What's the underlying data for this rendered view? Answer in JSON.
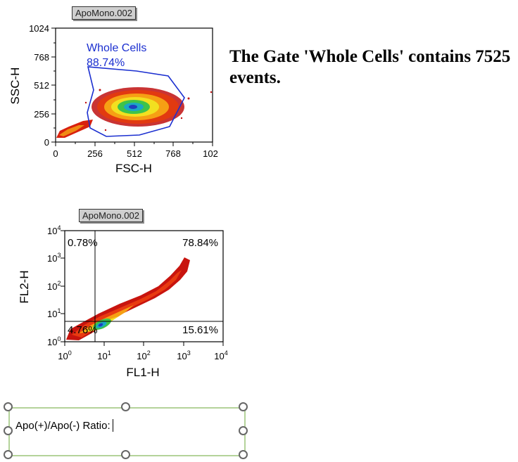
{
  "plots": [
    {
      "title": "ApoMono.002",
      "x_axis": {
        "label": "FSC-H",
        "ticks": [
          "0",
          "256",
          "512",
          "768",
          "102"
        ]
      },
      "y_axis": {
        "label": "SSC-H",
        "ticks": [
          "0",
          "256",
          "512",
          "768",
          "1024"
        ]
      },
      "gate": {
        "name": "Whole Cells",
        "percent": "88.74%"
      }
    },
    {
      "title": "ApoMono.002",
      "x_axis": {
        "label": "FL1-H",
        "ticks": [
          "10^0",
          "10^1",
          "10^2",
          "10^3",
          "10^4"
        ]
      },
      "y_axis": {
        "label": "FL2-H",
        "ticks": [
          "10^0",
          "10^1",
          "10^2",
          "10^3",
          "10^4"
        ]
      },
      "quadrants": {
        "upper_left": "0.78%",
        "upper_right": "78.84%",
        "lower_left": "4.76%",
        "lower_right": "15.61%"
      }
    }
  ],
  "statement": {
    "text": "The Gate 'Whole Cells' contains 7525 events."
  },
  "ratio_box": {
    "label": "Apo(+)/Apo(-) Ratio:"
  },
  "colors": {
    "gate": "#1b2fd0",
    "selection_border": "#b4d39a",
    "handles": "#666666"
  }
}
